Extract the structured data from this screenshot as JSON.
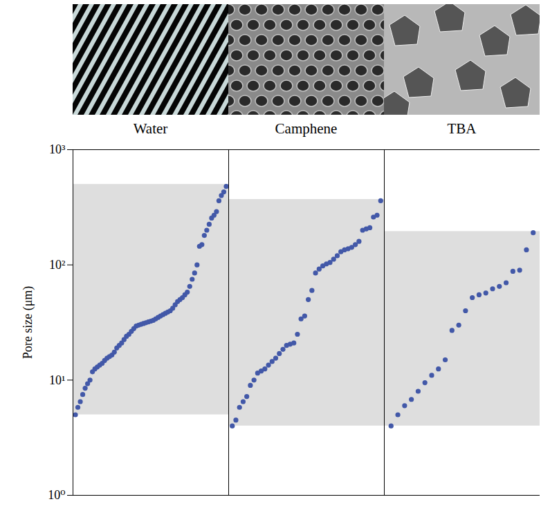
{
  "chart_data": {
    "type": "scatter",
    "ylabel": "Pore size (μm)",
    "log": "y",
    "ylim": [
      1,
      1000
    ],
    "yticks": [
      {
        "value": 1,
        "label": "10⁰"
      },
      {
        "value": 10,
        "label": "10¹"
      },
      {
        "value": 100,
        "label": "10²"
      },
      {
        "value": 1000,
        "label": "10³"
      }
    ],
    "tick_labels": "y",
    "marker": "circle",
    "series": [
      {
        "name": "Water",
        "color": "#4258a8",
        "range": [
          5,
          500
        ],
        "values": [
          5,
          5.8,
          6.5,
          7.5,
          8.5,
          9.3,
          10,
          11.8,
          12.5,
          13,
          13.5,
          14,
          14.8,
          15.5,
          16,
          16.5,
          17.5,
          19,
          20,
          21,
          22.5,
          24,
          25,
          26.5,
          28,
          29.5,
          30,
          30.5,
          31,
          31.5,
          32,
          32.5,
          33,
          34,
          35,
          36,
          37,
          38,
          39,
          40,
          42,
          45,
          48,
          50,
          52,
          55,
          58,
          65,
          75,
          85,
          100,
          145,
          150,
          180,
          200,
          225,
          255,
          270,
          290,
          360,
          400,
          430,
          480
        ]
      },
      {
        "name": "Camphene",
        "color": "#4258a8",
        "range": [
          4,
          370
        ],
        "values": [
          4,
          4.5,
          5.8,
          6.5,
          7.2,
          9,
          10,
          11.5,
          12,
          12.5,
          13.5,
          14.5,
          15.5,
          17,
          18.5,
          20,
          20.5,
          21,
          25,
          34,
          36,
          50,
          60,
          85,
          92,
          98,
          102,
          105,
          112,
          120,
          130,
          135,
          138,
          142,
          150,
          160,
          200,
          205,
          210,
          260,
          270,
          360
        ]
      },
      {
        "name": "TBA",
        "color": "#4258a8",
        "range": [
          4,
          195
        ],
        "values": [
          4,
          5,
          6,
          6.8,
          8,
          9.5,
          11,
          12.5,
          15,
          27,
          30,
          40,
          52,
          55,
          57,
          62,
          65,
          70,
          88,
          90,
          135,
          190
        ]
      }
    ]
  }
}
